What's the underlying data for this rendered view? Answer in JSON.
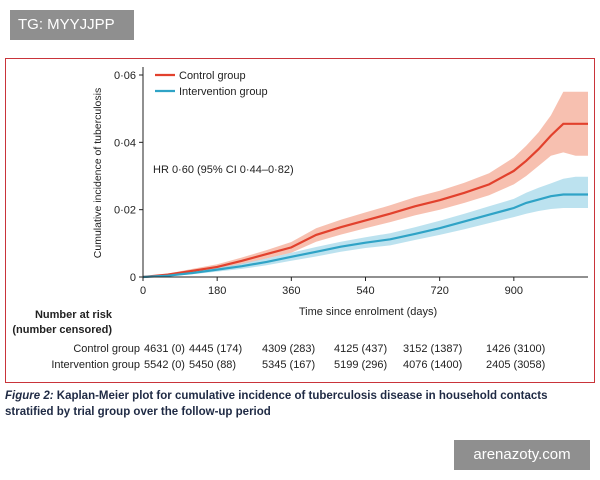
{
  "watermarks": {
    "top_left": "TG: MYYJJPP",
    "bottom_right": "arenazoty.com"
  },
  "colors": {
    "control": "#e2412d",
    "control_ci": "#f4a58f",
    "intervention": "#2fa3c6",
    "intervention_ci": "#9fd6e8",
    "frame": "#c9343a"
  },
  "chart_data": {
    "type": "line",
    "title": "",
    "xlabel": "Time since enrolment (days)",
    "ylabel": "Cumulative incidence of tuberculosis",
    "xlim": [
      0,
      1080
    ],
    "ylim": [
      0,
      0.06
    ],
    "x_ticks": [
      0,
      180,
      360,
      540,
      720,
      900
    ],
    "y_ticks": [
      0,
      0.02,
      0.04,
      0.06
    ],
    "y_tick_labels": [
      "0",
      "0·02",
      "0·04",
      "0·06"
    ],
    "legend_position": "top-left",
    "annotation": "HR 0·60 (95% CI 0·44–0·82)",
    "series": [
      {
        "name": "Control group",
        "x": [
          0,
          60,
          120,
          180,
          240,
          300,
          360,
          420,
          480,
          540,
          600,
          660,
          720,
          780,
          840,
          900,
          930,
          960,
          990,
          1020,
          1050,
          1080
        ],
        "values": [
          0,
          0.0007,
          0.0018,
          0.003,
          0.0048,
          0.0068,
          0.0088,
          0.0125,
          0.0148,
          0.0168,
          0.0188,
          0.021,
          0.0228,
          0.025,
          0.0275,
          0.0315,
          0.0345,
          0.038,
          0.042,
          0.0455,
          0.0455,
          0.0455
        ],
        "lower": [
          0,
          0.0004,
          0.0012,
          0.0022,
          0.0038,
          0.0055,
          0.0072,
          0.0105,
          0.0126,
          0.0145,
          0.0163,
          0.0183,
          0.02,
          0.022,
          0.0243,
          0.0275,
          0.03,
          0.033,
          0.036,
          0.037,
          0.036,
          0.036
        ],
        "upper": [
          0,
          0.001,
          0.0024,
          0.0038,
          0.0058,
          0.008,
          0.0104,
          0.0145,
          0.017,
          0.0192,
          0.0213,
          0.0237,
          0.0256,
          0.028,
          0.0308,
          0.0355,
          0.039,
          0.043,
          0.048,
          0.055,
          0.055,
          0.055
        ]
      },
      {
        "name": "Intervention group",
        "x": [
          0,
          60,
          120,
          180,
          240,
          300,
          360,
          420,
          480,
          540,
          600,
          660,
          720,
          780,
          840,
          900,
          930,
          960,
          990,
          1020,
          1050,
          1080
        ],
        "values": [
          0,
          0.0004,
          0.0012,
          0.0022,
          0.0032,
          0.0045,
          0.006,
          0.0075,
          0.009,
          0.0102,
          0.0112,
          0.0128,
          0.0145,
          0.0165,
          0.0185,
          0.0205,
          0.022,
          0.023,
          0.024,
          0.0245,
          0.0245,
          0.0245
        ],
        "lower": [
          0,
          0.0002,
          0.0008,
          0.0016,
          0.0024,
          0.0035,
          0.0048,
          0.0061,
          0.0075,
          0.0086,
          0.0094,
          0.011,
          0.0125,
          0.0142,
          0.016,
          0.0178,
          0.0188,
          0.0196,
          0.0202,
          0.0205,
          0.0205,
          0.0205
        ],
        "upper": [
          0,
          0.0006,
          0.0016,
          0.0028,
          0.004,
          0.0055,
          0.0072,
          0.0089,
          0.0105,
          0.0118,
          0.013,
          0.0148,
          0.0167,
          0.0188,
          0.021,
          0.0232,
          0.025,
          0.0265,
          0.0278,
          0.0292,
          0.0298,
          0.0298
        ]
      }
    ]
  },
  "risk_table": {
    "title_line1": "Number at risk",
    "title_line2": "(number censored)",
    "rows": [
      {
        "label": "Control group",
        "values": [
          "4631 (0)",
          "4445 (174)",
          "4309 (283)",
          "4125 (437)",
          "3152 (1387)",
          "1426 (3100)"
        ]
      },
      {
        "label": "Intervention group",
        "values": [
          "5542 (0)",
          "5450 (88)",
          "5345 (167)",
          "5199 (296)",
          "4076 (1400)",
          "2405 (3058)"
        ]
      }
    ]
  },
  "caption": {
    "figure_label": "Figure 2:",
    "text": " Kaplan-Meier plot for cumulative incidence of tuberculosis disease in household contacts stratified by trial group over the follow-up period"
  }
}
